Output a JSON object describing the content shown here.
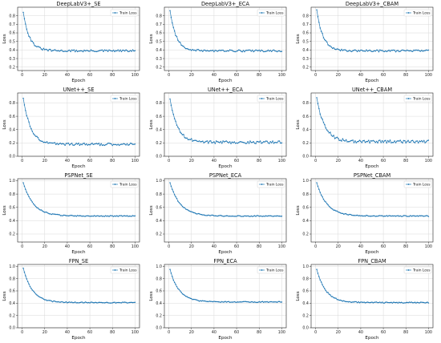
{
  "figure": {
    "background": "#ffffff",
    "line_color": "#1f77b4"
  },
  "chart_data": [
    {
      "type": "line",
      "title": "DeepLabV3+_SE",
      "xlabel": "Epoch",
      "ylabel": "Loss",
      "xlim": [
        -4,
        104
      ],
      "ylim": [
        0.16,
        0.9
      ],
      "xticks": [
        0,
        20,
        40,
        60,
        80,
        100
      ],
      "yticks": [
        0.2,
        0.3,
        0.4,
        0.5,
        0.6,
        0.7,
        0.8
      ],
      "grid": true,
      "legend": "top-right",
      "series": [
        {
          "name": "Train Loss",
          "start": 0.84,
          "end": 0.39,
          "decay": 5.5,
          "noise": 0.012,
          "n": 100
        }
      ]
    },
    {
      "type": "line",
      "title": "DeepLabV3+_ECA",
      "xlabel": "Epoch",
      "ylabel": "Loss",
      "xlim": [
        -4,
        104
      ],
      "ylim": [
        0.16,
        0.9
      ],
      "xticks": [
        0,
        20,
        40,
        60,
        80,
        100
      ],
      "yticks": [
        0.2,
        0.3,
        0.4,
        0.5,
        0.6,
        0.7,
        0.8
      ],
      "grid": true,
      "legend": "top-right",
      "series": [
        {
          "name": "Train Loss",
          "start": 0.86,
          "end": 0.39,
          "decay": 5.5,
          "noise": 0.011,
          "n": 100
        }
      ]
    },
    {
      "type": "line",
      "title": "DeepLabV3+_CBAM",
      "xlabel": "Epoch",
      "ylabel": "Loss",
      "xlim": [
        -4,
        104
      ],
      "ylim": [
        0.16,
        0.9
      ],
      "xticks": [
        0,
        20,
        40,
        60,
        80,
        100
      ],
      "yticks": [
        0.2,
        0.3,
        0.4,
        0.5,
        0.6,
        0.7,
        0.8
      ],
      "grid": true,
      "legend": "top-right",
      "series": [
        {
          "name": "Train Loss",
          "start": 0.87,
          "end": 0.39,
          "decay": 5.5,
          "noise": 0.011,
          "n": 100
        }
      ]
    },
    {
      "type": "line",
      "title": "UNet++_SE",
      "xlabel": "Epoch",
      "ylabel": "Loss",
      "xlim": [
        -4,
        104
      ],
      "ylim": [
        0.0,
        0.95
      ],
      "xticks": [
        0,
        20,
        40,
        60,
        80,
        100
      ],
      "yticks": [
        0.0,
        0.2,
        0.4,
        0.6,
        0.8
      ],
      "grid": true,
      "legend": "top-right",
      "series": [
        {
          "name": "Train Loss",
          "start": 0.87,
          "end": 0.18,
          "decay": 6.5,
          "noise": 0.018,
          "n": 100
        }
      ]
    },
    {
      "type": "line",
      "title": "UNet++_ECA",
      "xlabel": "Epoch",
      "ylabel": "Loss",
      "xlim": [
        -4,
        104
      ],
      "ylim": [
        0.0,
        0.95
      ],
      "xticks": [
        0,
        20,
        40,
        60,
        80,
        100
      ],
      "yticks": [
        0.0,
        0.2,
        0.4,
        0.6,
        0.8
      ],
      "grid": true,
      "legend": "top-right",
      "series": [
        {
          "name": "Train Loss",
          "start": 0.86,
          "end": 0.21,
          "decay": 6.5,
          "noise": 0.02,
          "n": 100
        }
      ]
    },
    {
      "type": "line",
      "title": "UNet++_CBAM",
      "xlabel": "Epoch",
      "ylabel": "Loss",
      "xlim": [
        -4,
        104
      ],
      "ylim": [
        0.0,
        0.95
      ],
      "xticks": [
        0,
        20,
        40,
        60,
        80,
        100
      ],
      "yticks": [
        0.0,
        0.2,
        0.4,
        0.6,
        0.8
      ],
      "grid": true,
      "legend": "top-right",
      "series": [
        {
          "name": "Train Loss",
          "start": 0.88,
          "end": 0.22,
          "decay": 7,
          "noise": 0.022,
          "n": 100
        }
      ]
    },
    {
      "type": "line",
      "title": "PSPNet_SE",
      "xlabel": "Epoch",
      "ylabel": "Loss",
      "xlim": [
        -4,
        104
      ],
      "ylim": [
        0.08,
        1.03
      ],
      "xticks": [
        0,
        20,
        40,
        60,
        80,
        100
      ],
      "yticks": [
        0.2,
        0.4,
        0.6,
        0.8,
        1.0
      ],
      "grid": true,
      "legend": "top-right",
      "series": [
        {
          "name": "Train Loss",
          "start": 0.97,
          "end": 0.47,
          "decay": 9,
          "noise": 0.007,
          "n": 100
        }
      ]
    },
    {
      "type": "line",
      "title": "PSPNet_ECA",
      "xlabel": "Epoch",
      "ylabel": "Loss",
      "xlim": [
        -4,
        104
      ],
      "ylim": [
        0.08,
        1.03
      ],
      "xticks": [
        0,
        20,
        40,
        60,
        80,
        100
      ],
      "yticks": [
        0.2,
        0.4,
        0.6,
        0.8,
        1.0
      ],
      "grid": true,
      "legend": "top-right",
      "series": [
        {
          "name": "Train Loss",
          "start": 0.97,
          "end": 0.47,
          "decay": 9,
          "noise": 0.007,
          "n": 100
        }
      ]
    },
    {
      "type": "line",
      "title": "PSPNet_CBAM",
      "xlabel": "Epoch",
      "ylabel": "Loss",
      "xlim": [
        -4,
        104
      ],
      "ylim": [
        0.08,
        1.03
      ],
      "xticks": [
        0,
        20,
        40,
        60,
        80,
        100
      ],
      "yticks": [
        0.2,
        0.4,
        0.6,
        0.8,
        1.0
      ],
      "grid": true,
      "legend": "top-right",
      "series": [
        {
          "name": "Train Loss",
          "start": 0.97,
          "end": 0.47,
          "decay": 9,
          "noise": 0.007,
          "n": 100
        }
      ]
    },
    {
      "type": "line",
      "title": "FPN_SE",
      "xlabel": "Epoch",
      "ylabel": "Loss",
      "xlim": [
        -4,
        104
      ],
      "ylim": [
        0.0,
        1.03
      ],
      "xticks": [
        0,
        20,
        40,
        60,
        80,
        100
      ],
      "yticks": [
        0.0,
        0.2,
        0.4,
        0.6,
        0.8,
        1.0
      ],
      "grid": true,
      "legend": "top-right",
      "series": [
        {
          "name": "Train Loss",
          "start": 0.97,
          "end": 0.41,
          "decay": 8,
          "noise": 0.008,
          "n": 100
        }
      ]
    },
    {
      "type": "line",
      "title": "FPN_ECA",
      "xlabel": "Epoch",
      "ylabel": "Loss",
      "xlim": [
        -4,
        104
      ],
      "ylim": [
        0.0,
        1.03
      ],
      "xticks": [
        0,
        20,
        40,
        60,
        80,
        100
      ],
      "yticks": [
        0.0,
        0.2,
        0.4,
        0.6,
        0.8,
        1.0
      ],
      "grid": true,
      "legend": "top-right",
      "series": [
        {
          "name": "Train Loss",
          "start": 0.95,
          "end": 0.42,
          "decay": 8,
          "noise": 0.008,
          "n": 100
        }
      ]
    },
    {
      "type": "line",
      "title": "FPN_CBAM",
      "xlabel": "Epoch",
      "ylabel": "Loss",
      "xlim": [
        -4,
        104
      ],
      "ylim": [
        0.0,
        1.03
      ],
      "xticks": [
        0,
        20,
        40,
        60,
        80,
        100
      ],
      "yticks": [
        0.0,
        0.2,
        0.4,
        0.6,
        0.8,
        1.0
      ],
      "grid": true,
      "legend": "top-right",
      "series": [
        {
          "name": "Train Loss",
          "start": 0.95,
          "end": 0.41,
          "decay": 8,
          "noise": 0.008,
          "n": 100
        }
      ]
    }
  ]
}
